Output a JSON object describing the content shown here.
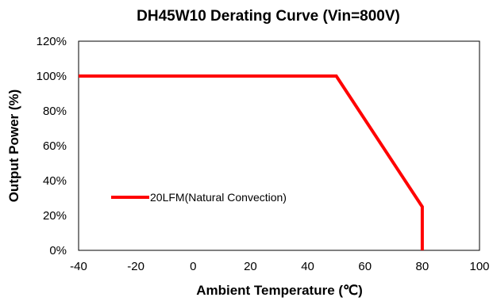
{
  "chart_data": {
    "type": "line",
    "title": "DH45W10 Derating Curve (Vin=800V)",
    "xlabel": "Ambient Temperature (℃)",
    "ylabel": "Output Power (%)",
    "xlim": [
      -40,
      100
    ],
    "ylim": [
      0,
      120
    ],
    "x_ticks": [
      -40,
      -20,
      0,
      20,
      40,
      60,
      80,
      100
    ],
    "y_ticks": [
      0,
      20,
      40,
      60,
      80,
      100,
      120
    ],
    "y_tick_labels": [
      "0%",
      "20%",
      "40%",
      "60%",
      "80%",
      "100%",
      "120%"
    ],
    "grid": false,
    "legend_position": "left",
    "series": [
      {
        "name": "20LFM(Natural Convection)",
        "color": "#ff0000",
        "points": [
          {
            "x": -40,
            "y": 100
          },
          {
            "x": 50,
            "y": 100
          },
          {
            "x": 80,
            "y": 25
          },
          {
            "x": 80,
            "y": 0
          }
        ]
      }
    ]
  }
}
